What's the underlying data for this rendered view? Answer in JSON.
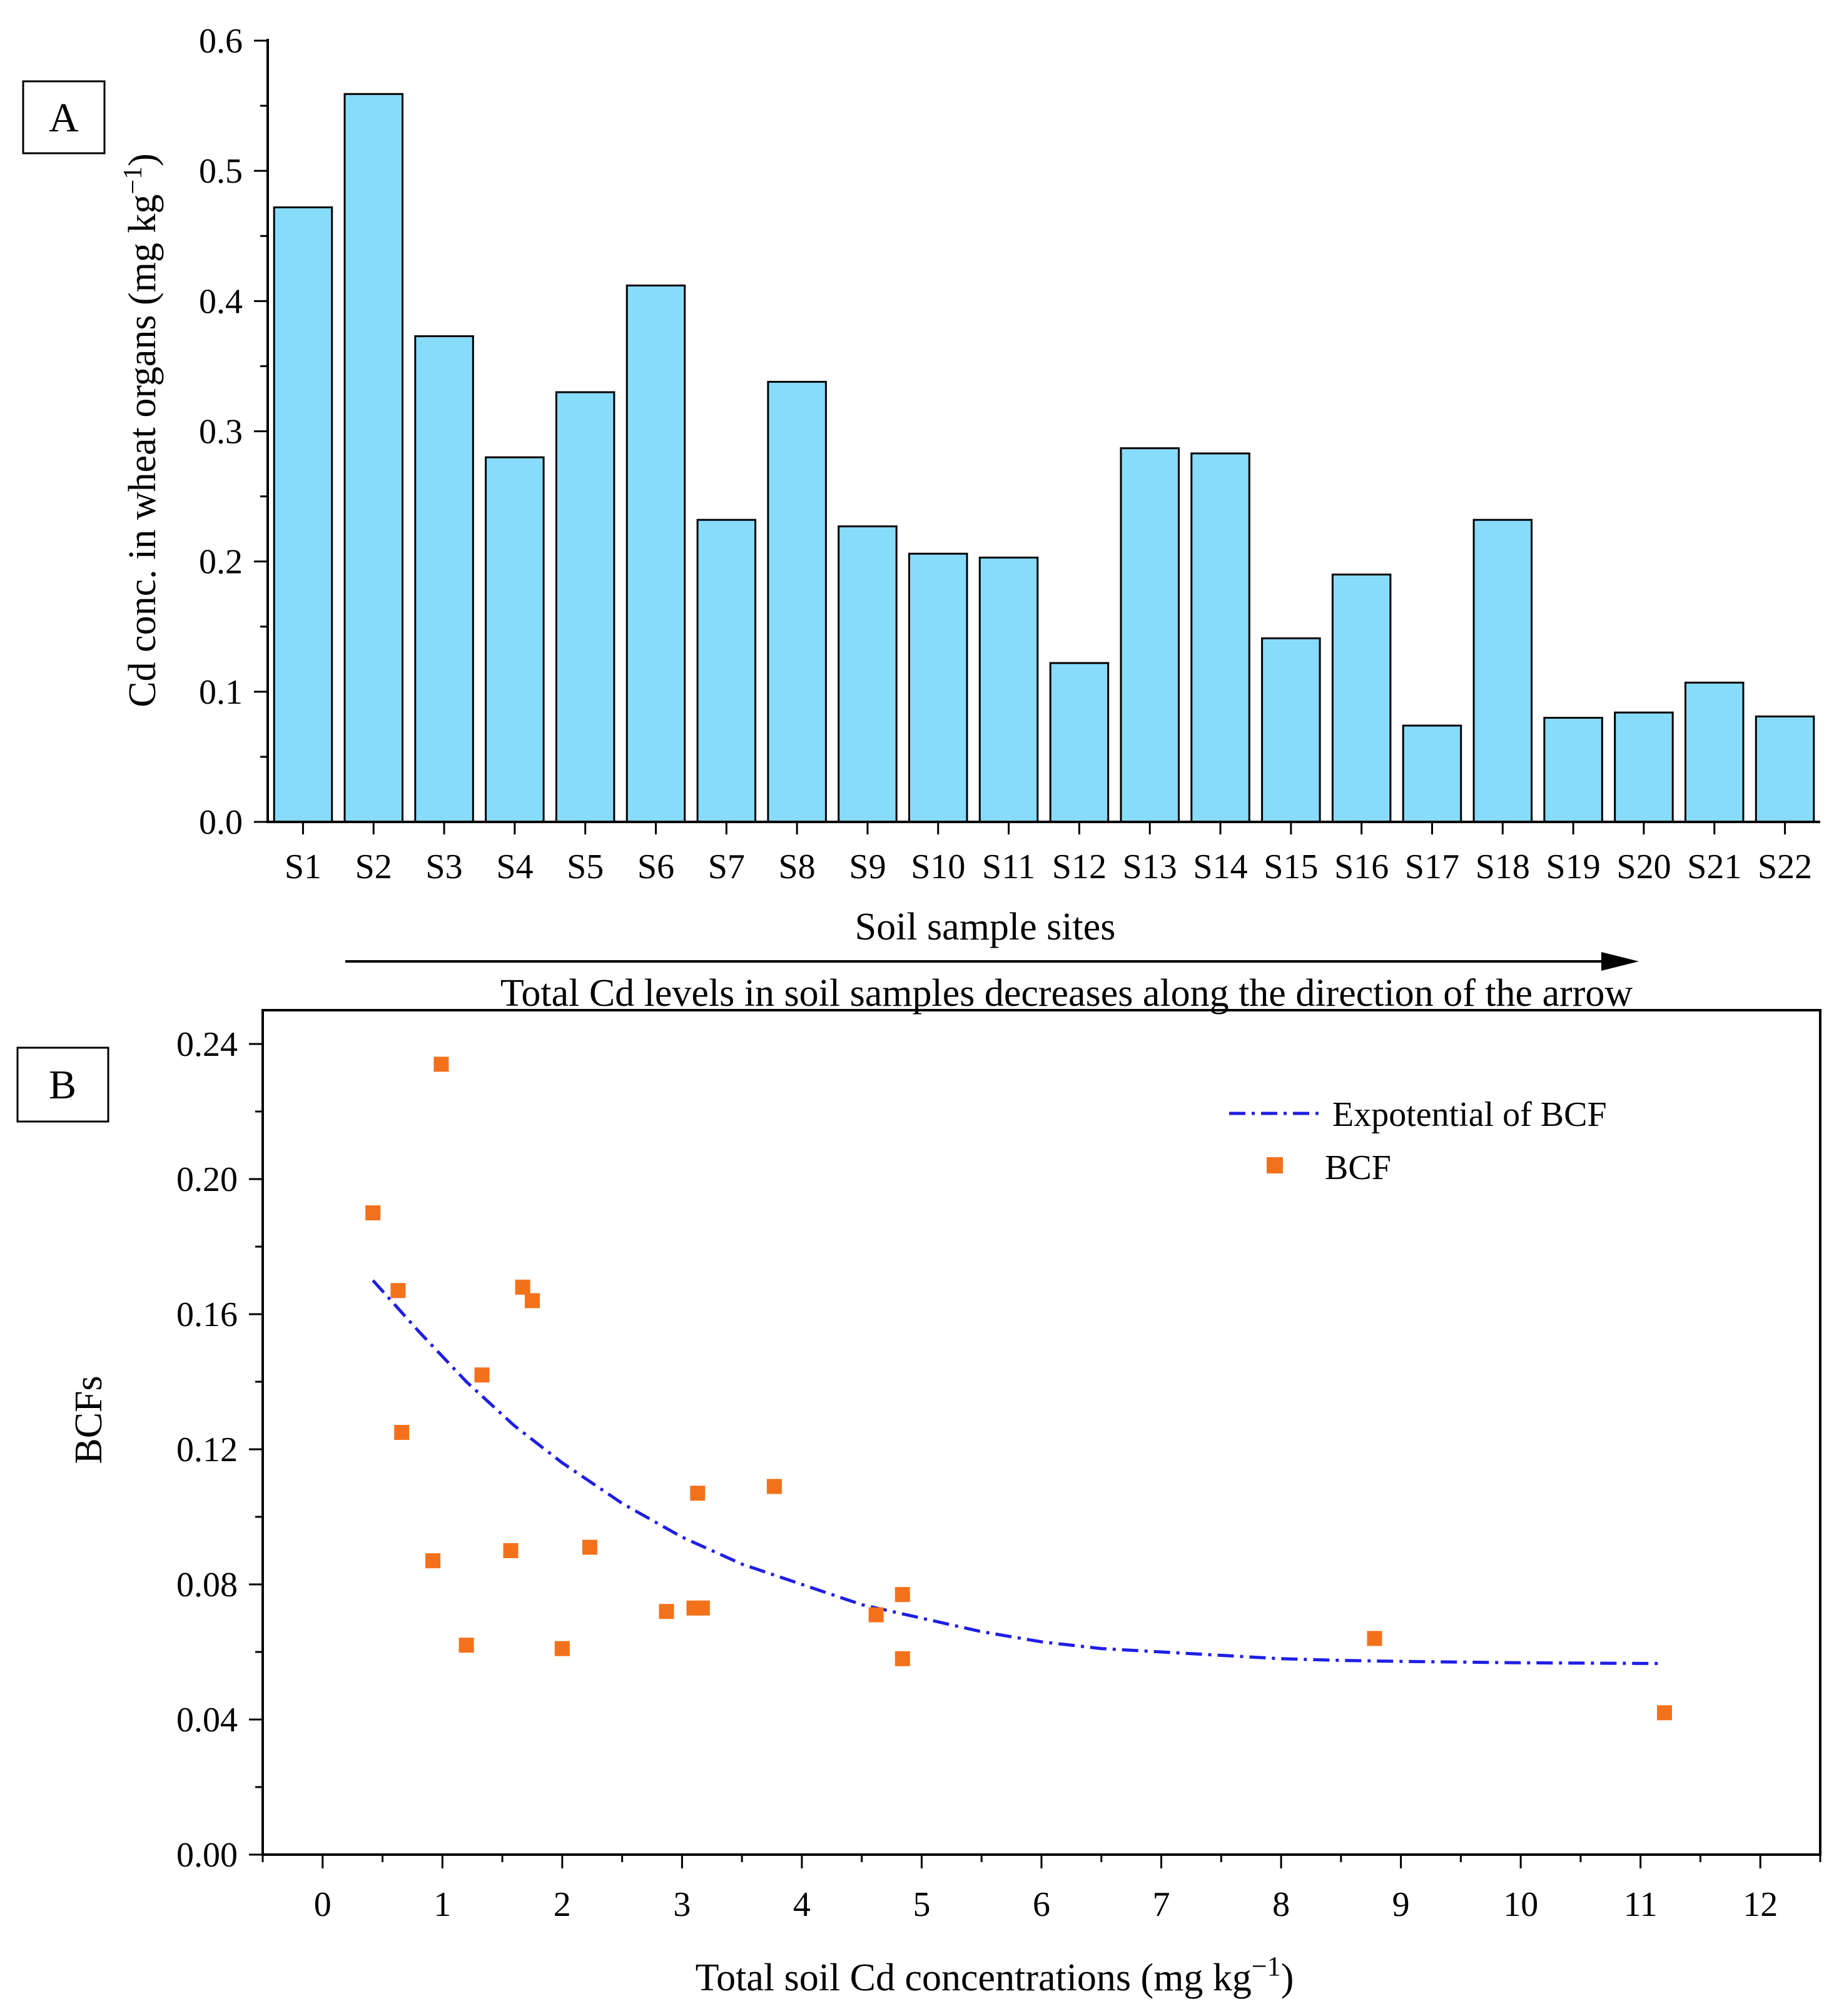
{
  "chart_data": [
    {
      "panel": "A",
      "type": "bar",
      "panel_label": "A",
      "categories": [
        "S1",
        "S2",
        "S3",
        "S4",
        "S5",
        "S6",
        "S7",
        "S8",
        "S9",
        "S10",
        "S11",
        "S12",
        "S13",
        "S14",
        "S15",
        "S16",
        "S17",
        "S18",
        "S19",
        "S20",
        "S21",
        "S22"
      ],
      "values": [
        0.472,
        0.559,
        0.373,
        0.28,
        0.33,
        0.412,
        0.232,
        0.338,
        0.227,
        0.206,
        0.203,
        0.122,
        0.287,
        0.283,
        0.141,
        0.19,
        0.074,
        0.232,
        0.08,
        0.084,
        0.107,
        0.081
      ],
      "bar_color": "#87dcfb",
      "xlabel": "Soil sample sites",
      "ylabel": "Cd conc. in wheat organs (mg kg",
      "ylabel_sup": "−1",
      "ylabel_close": ")",
      "ylim": [
        0,
        0.6
      ],
      "yticks": [
        "0.0",
        "0.1",
        "0.2",
        "0.3",
        "0.4",
        "0.5",
        "0.6"
      ],
      "arrow_caption": "Total Cd levels in soil samples decreases along the direction of the arrow"
    },
    {
      "panel": "B",
      "type": "scatter",
      "panel_label": "B",
      "xlabel": "Total soil Cd concentrations  (mg kg",
      "xlabel_sup": "−1",
      "xlabel_close": ")",
      "ylabel": "BCFs",
      "xlim": [
        -0.5,
        12.5
      ],
      "ylim": [
        0,
        0.25
      ],
      "xticks": [
        "0",
        "1",
        "2",
        "3",
        "4",
        "5",
        "6",
        "7",
        "8",
        "9",
        "10",
        "11",
        "12"
      ],
      "yticks": [
        "0.00",
        "0.04",
        "0.08",
        "0.12",
        "0.16",
        "0.20",
        "0.24"
      ],
      "series": [
        {
          "name": "BCF",
          "kind": "points",
          "color": "#f4711b",
          "points": [
            [
              0.42,
              0.19
            ],
            [
              0.99,
              0.234
            ],
            [
              0.63,
              0.167
            ],
            [
              0.66,
              0.125
            ],
            [
              1.67,
              0.168
            ],
            [
              1.75,
              0.164
            ],
            [
              1.33,
              0.142
            ],
            [
              0.92,
              0.087
            ],
            [
              1.2,
              0.062
            ],
            [
              1.57,
              0.09
            ],
            [
              2.0,
              0.061
            ],
            [
              2.23,
              0.091
            ],
            [
              2.87,
              0.072
            ],
            [
              3.1,
              0.073
            ],
            [
              3.17,
              0.073
            ],
            [
              3.13,
              0.107
            ],
            [
              3.77,
              0.109
            ],
            [
              4.62,
              0.071
            ],
            [
              4.84,
              0.077
            ],
            [
              4.84,
              0.058
            ],
            [
              8.78,
              0.064
            ],
            [
              11.2,
              0.042
            ]
          ]
        },
        {
          "name": "Expotential of BCF",
          "kind": "fit",
          "color": "#1e1ee6",
          "curve": [
            [
              0.42,
              0.17
            ],
            [
              0.8,
              0.155
            ],
            [
              1.2,
              0.14
            ],
            [
              1.6,
              0.127
            ],
            [
              2.0,
              0.116
            ],
            [
              2.5,
              0.104
            ],
            [
              3.0,
              0.094
            ],
            [
              3.5,
              0.086
            ],
            [
              4.0,
              0.08
            ],
            [
              4.5,
              0.074
            ],
            [
              5.0,
              0.07
            ],
            [
              5.5,
              0.066
            ],
            [
              6.0,
              0.063
            ],
            [
              6.5,
              0.061
            ],
            [
              7.0,
              0.06
            ],
            [
              7.5,
              0.059
            ],
            [
              8.0,
              0.058
            ],
            [
              8.5,
              0.0575
            ],
            [
              9.0,
              0.0572
            ],
            [
              9.5,
              0.057
            ],
            [
              10.0,
              0.0568
            ],
            [
              10.5,
              0.0567
            ],
            [
              11.15,
              0.0566
            ]
          ]
        }
      ],
      "legend": [
        {
          "label": "Expotential of BCF",
          "kind": "dashdot-line",
          "color": "#1e1ee6"
        },
        {
          "label": "BCF",
          "kind": "square-marker",
          "color": "#f4711b"
        }
      ]
    }
  ]
}
